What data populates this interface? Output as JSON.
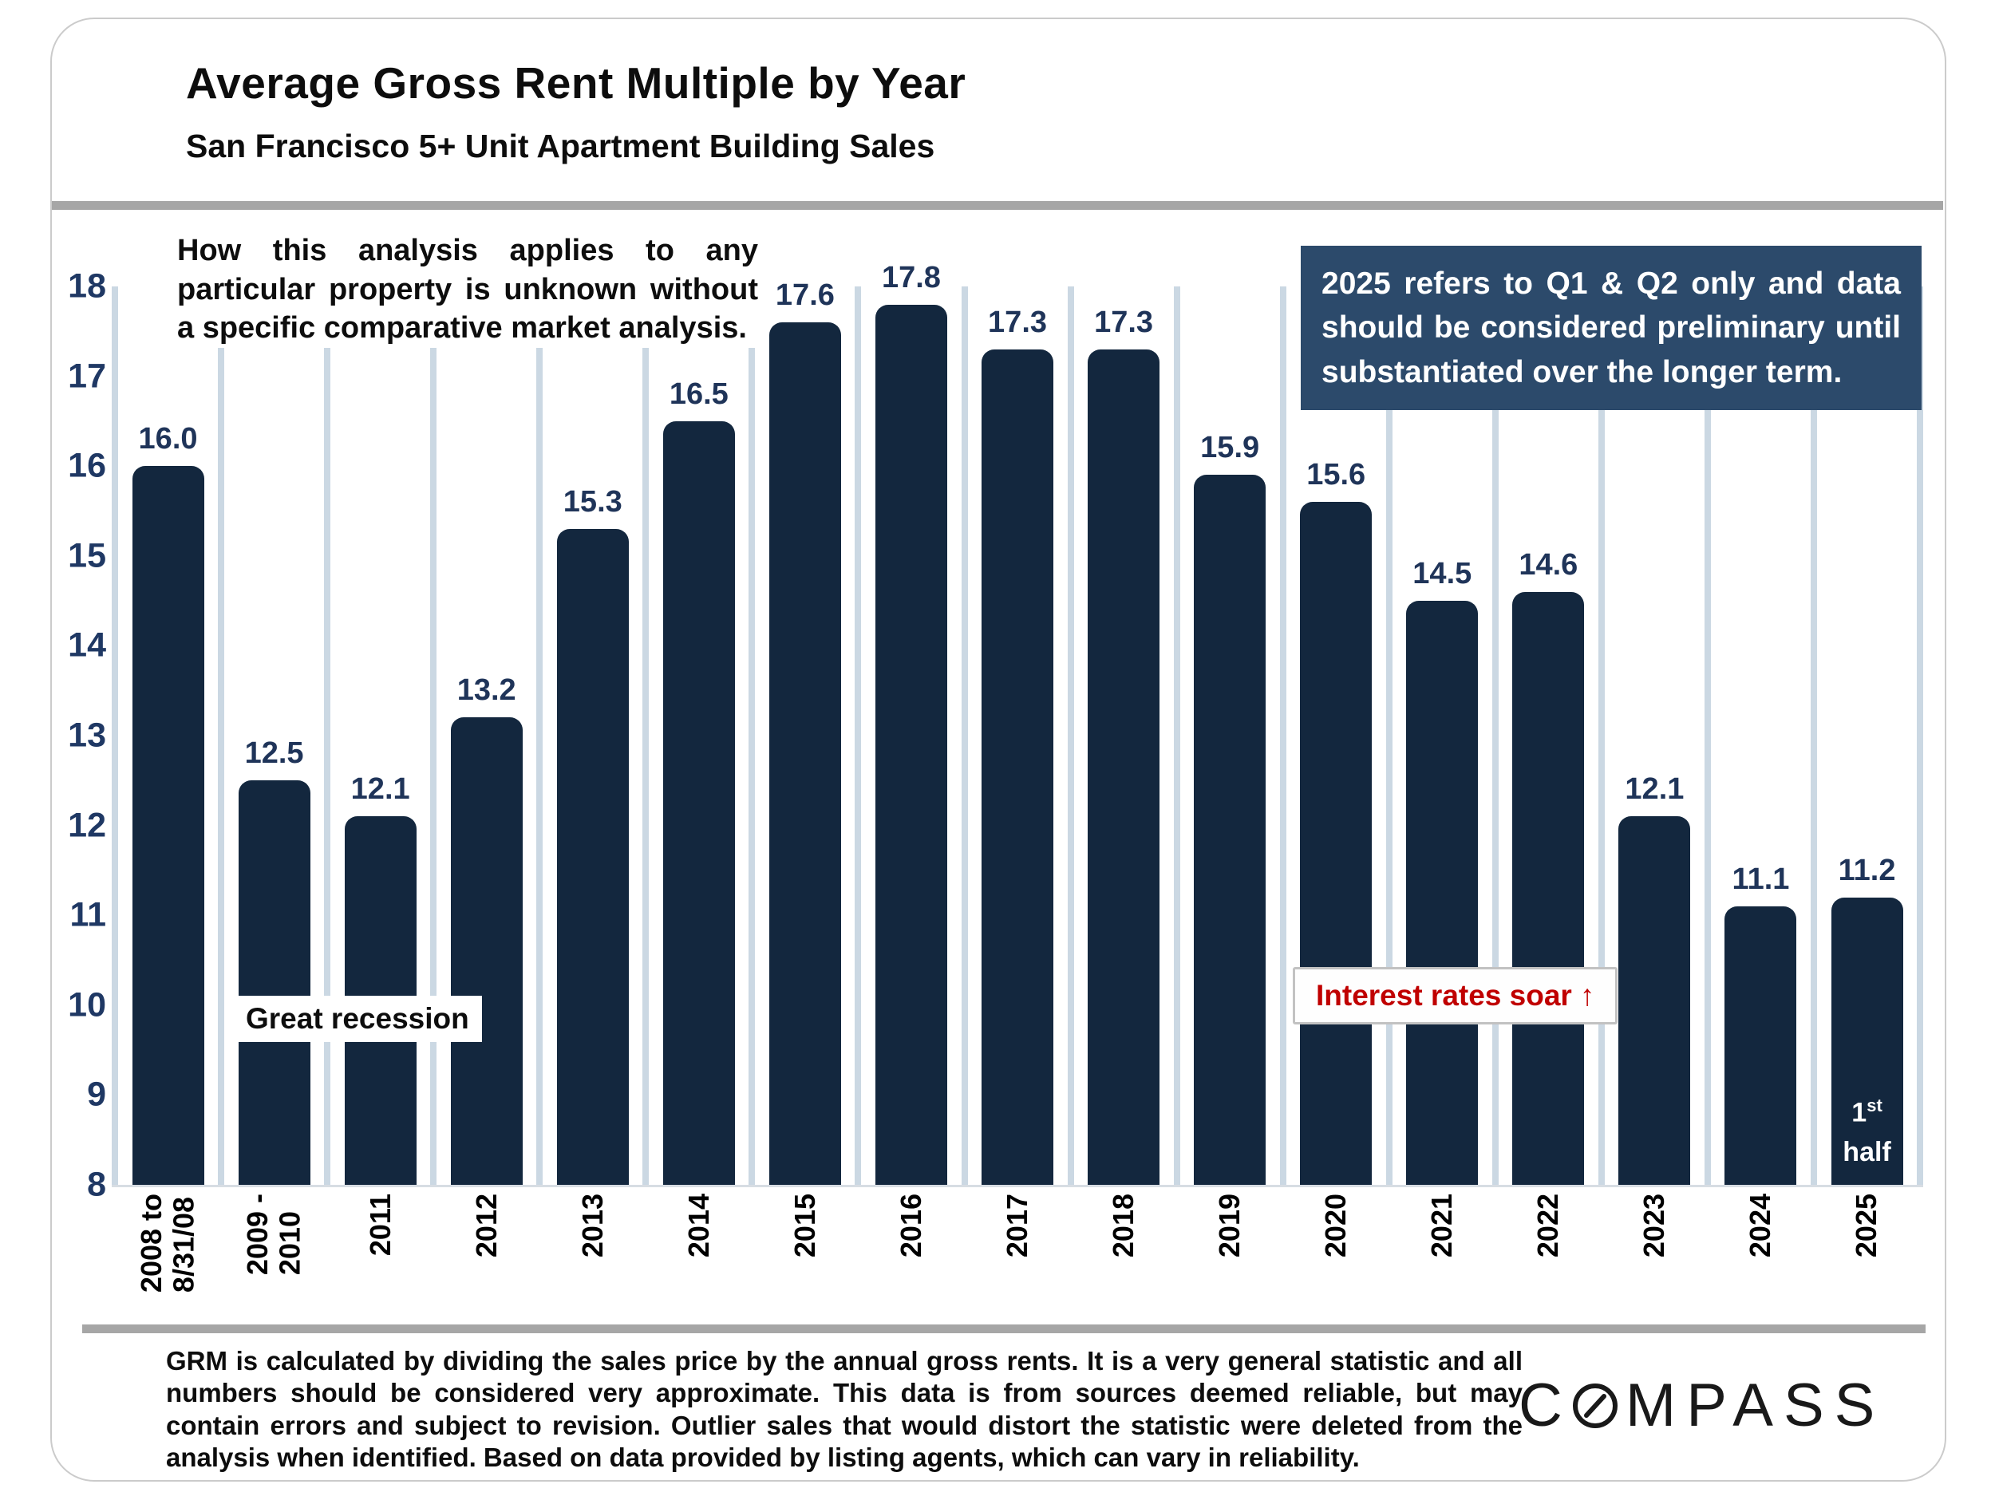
{
  "header": {
    "title": "Average Gross Rent Multiple by Year",
    "subtitle": "San Francisco 5+ Unit Apartment Building Sales"
  },
  "annotations": {
    "disclaimer_lines": [
      "How this analysis applies to any",
      "particular property is unknown without",
      "a specific comparative market analysis."
    ],
    "note_2025_lines": [
      "2025 refers to Q1 & Q2 only and data",
      "should be considered preliminary until",
      "substantiated over the longer term."
    ],
    "great_recession": "Great recession",
    "interest_rates": "Interest rates soar",
    "interest_rates_arrow": "↑",
    "first_half_num": "1",
    "first_half_sup": "st",
    "first_half_word": "half"
  },
  "chart_data": {
    "type": "bar",
    "title": "Average Gross Rent Multiple by Year",
    "subtitle": "San Francisco 5+ Unit Apartment Building Sales",
    "categories": [
      "2008 to\n8/31/08",
      "2009 -\n2010",
      "2011",
      "2012",
      "2013",
      "2014",
      "2015",
      "2016",
      "2017",
      "2018",
      "2019",
      "2020",
      "2021",
      "2022",
      "2023",
      "2024",
      "2025"
    ],
    "values": [
      16.0,
      12.5,
      12.1,
      13.2,
      15.3,
      16.5,
      17.6,
      17.8,
      17.3,
      17.3,
      15.9,
      15.6,
      14.5,
      14.6,
      12.1,
      11.1,
      11.2
    ],
    "value_label_decimals": 1,
    "ylim": [
      8,
      18
    ],
    "yticks": [
      8,
      9,
      10,
      11,
      12,
      13,
      14,
      15,
      16,
      17,
      18
    ],
    "grid": "vertical-lines-between-categories",
    "legend": "none",
    "bar_color": "#13273E",
    "gridline_color": "#CBD8E3",
    "value_label_color": "#1F3459",
    "ytick_color": "#1F3864",
    "note_box_color": "#2C4A6B",
    "alert_text_color": "#C00000"
  },
  "footer": {
    "disclaimer_lines": [
      "GRM is calculated by dividing the sales price by the annual gross rents. It is a very general statistic and all",
      "numbers should be considered very approximate. This data is from sources deemed reliable, but may",
      "contain errors and subject to revision. Outlier sales that would distort the statistic were deleted from the",
      "analysis when identified. Based on data provided by listing agents, which can vary in reliability."
    ],
    "logo_prefix": "C",
    "logo_suffix": "MPASS",
    "logo_name": "COMPASS"
  }
}
